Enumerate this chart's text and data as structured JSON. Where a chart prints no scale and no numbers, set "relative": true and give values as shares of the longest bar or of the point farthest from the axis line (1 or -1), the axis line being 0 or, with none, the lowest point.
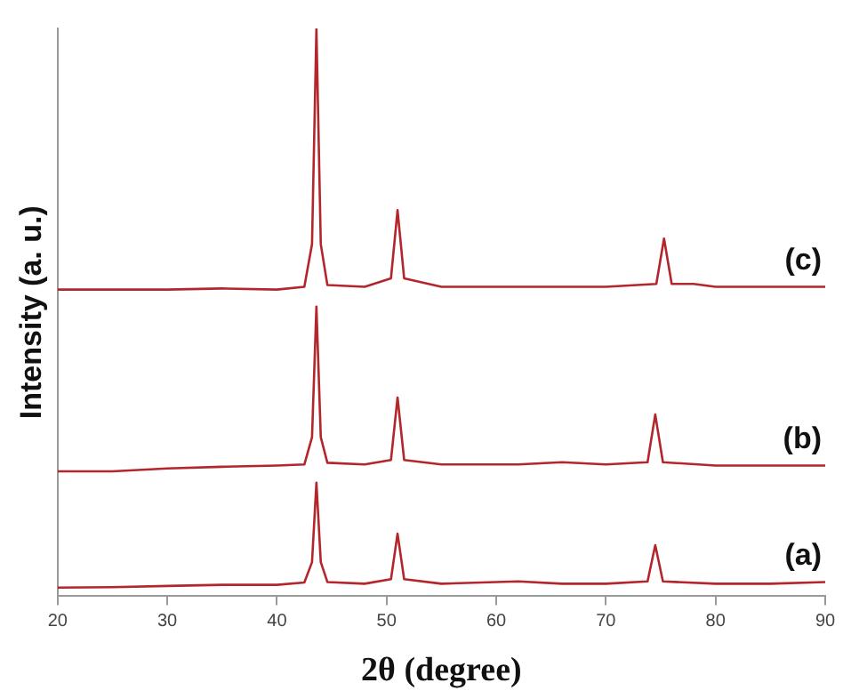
{
  "chart_data": {
    "type": "line",
    "xlabel": "2θ (degree)",
    "ylabel": "Intensity (a. u.)",
    "relative": true,
    "xlim": [
      20,
      90
    ],
    "xticks": [
      20,
      30,
      40,
      50,
      60,
      70,
      80,
      90
    ],
    "grid": false,
    "legend": false,
    "marker": "none",
    "line_style": "solid",
    "series": [
      {
        "name": "(a)",
        "color": "#b3262c",
        "x": [
          20,
          25,
          30,
          35,
          40,
          42.5,
          43.2,
          43.6,
          44.0,
          44.6,
          48,
          50.4,
          51.0,
          51.6,
          55,
          62,
          66,
          70,
          73.8,
          74.5,
          75.2,
          80,
          85,
          90
        ],
        "values": [
          0.015,
          0.016,
          0.018,
          0.02,
          0.02,
          0.024,
          0.06,
          0.2,
          0.06,
          0.025,
          0.022,
          0.03,
          0.11,
          0.03,
          0.022,
          0.026,
          0.022,
          0.022,
          0.026,
          0.09,
          0.026,
          0.022,
          0.022,
          0.025
        ]
      },
      {
        "name": "(b)",
        "color": "#b3262c",
        "x": [
          20,
          25,
          30,
          35,
          40,
          42.5,
          43.2,
          43.6,
          44.0,
          44.6,
          48,
          50.4,
          51.0,
          51.6,
          55,
          62,
          66,
          70,
          73.8,
          74.5,
          75.2,
          80,
          85,
          90
        ],
        "values": [
          0.22,
          0.22,
          0.225,
          0.228,
          0.23,
          0.232,
          0.28,
          0.51,
          0.28,
          0.235,
          0.232,
          0.24,
          0.35,
          0.24,
          0.232,
          0.232,
          0.236,
          0.232,
          0.236,
          0.32,
          0.236,
          0.23,
          0.23,
          0.23
        ]
      },
      {
        "name": "(c)",
        "color": "#b3262c",
        "x": [
          20,
          25,
          30,
          35,
          40,
          42.5,
          43.2,
          43.6,
          44.0,
          44.6,
          48,
          50.4,
          51.0,
          51.6,
          55,
          62,
          66,
          70,
          74.6,
          75.3,
          76.0,
          78,
          80,
          85,
          90
        ],
        "values": [
          0.54,
          0.54,
          0.54,
          0.542,
          0.54,
          0.545,
          0.62,
          1.0,
          0.62,
          0.548,
          0.545,
          0.56,
          0.68,
          0.56,
          0.545,
          0.545,
          0.545,
          0.545,
          0.55,
          0.63,
          0.55,
          0.55,
          0.545,
          0.545,
          0.545
        ]
      }
    ]
  }
}
